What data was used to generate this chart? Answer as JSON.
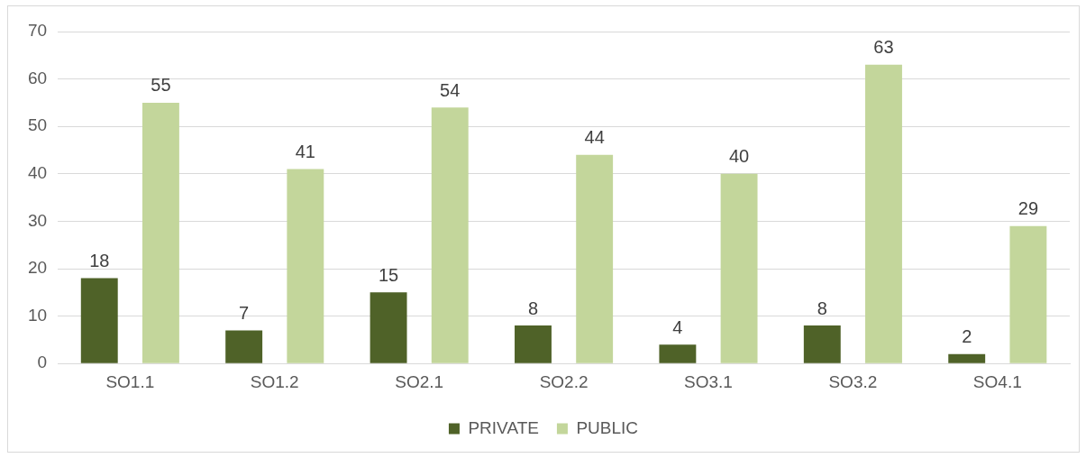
{
  "chart_data": {
    "type": "bar",
    "categories": [
      "SO1.1",
      "SO1.2",
      "SO2.1",
      "SO2.2",
      "SO3.1",
      "SO3.2",
      "SO4.1"
    ],
    "series": [
      {
        "name": "PRIVATE",
        "color": "#4f6228",
        "values": [
          18,
          7,
          15,
          8,
          4,
          8,
          2
        ]
      },
      {
        "name": "PUBLIC",
        "color": "#c3d69b",
        "values": [
          55,
          41,
          54,
          44,
          40,
          63,
          29
        ]
      }
    ],
    "ylim": [
      0,
      70
    ],
    "yticks": [
      0,
      10,
      20,
      30,
      40,
      50,
      60,
      70
    ],
    "grid": "y",
    "legend": "bottom",
    "data_labels": true
  }
}
